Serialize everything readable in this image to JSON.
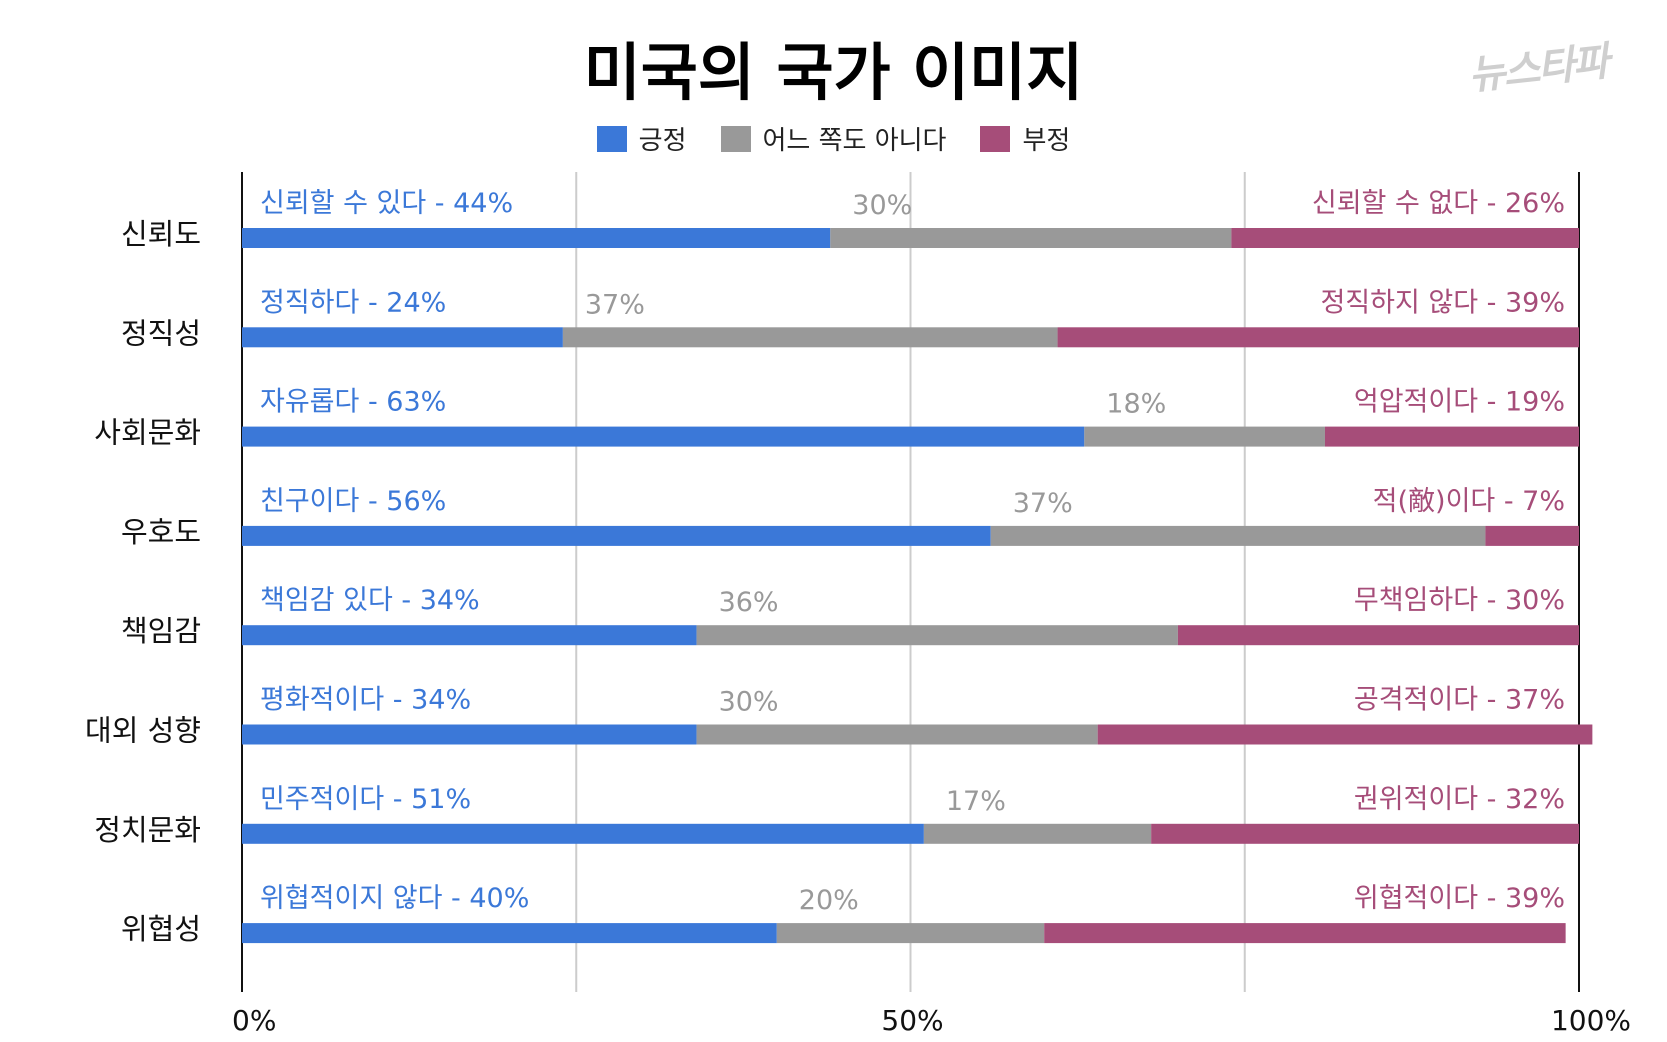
{
  "chart_data": {
    "type": "bar",
    "orientation": "horizontal",
    "stacked": true,
    "title": "미국의 국가 이미지",
    "logo_text": "뉴스타파",
    "xlim": [
      0,
      100
    ],
    "xticks": [
      "0%",
      "50%",
      "100%"
    ],
    "categories": [
      "신뢰도",
      "정직성",
      "사회문화",
      "우호도",
      "책임감",
      "대외 성향",
      "정치문화",
      "위협성"
    ],
    "series": [
      {
        "name": "긍정",
        "color": "#3b78d8",
        "values": [
          44,
          24,
          63,
          56,
          34,
          34,
          51,
          40
        ],
        "labels": [
          "신뢰할 수 있다 - 44%",
          "정직하다 - 24%",
          "자유롭다 - 63%",
          "친구이다 - 56%",
          "책임감 있다 - 34%",
          "평화적이다 - 34%",
          "민주적이다 - 51%",
          "위협적이지 않다 - 40%"
        ]
      },
      {
        "name": "어느 쪽도 아니다",
        "color": "#999999",
        "values": [
          30,
          37,
          18,
          37,
          36,
          30,
          17,
          20
        ],
        "labels": [
          "30%",
          "37%",
          "18%",
          "37%",
          "36%",
          "30%",
          "17%",
          "20%"
        ]
      },
      {
        "name": "부정",
        "color": "#a64d79",
        "values": [
          26,
          39,
          19,
          7,
          30,
          37,
          32,
          39
        ],
        "labels": [
          "신뢰할 수 없다 - 26%",
          "정직하지 않다 - 39%",
          "억압적이다 - 19%",
          "적(敵)이다 - 7%",
          "무책임하다 - 30%",
          "공격적이다 - 37%",
          "권위적이다 - 32%",
          "위협적이다 - 39%"
        ]
      }
    ]
  }
}
